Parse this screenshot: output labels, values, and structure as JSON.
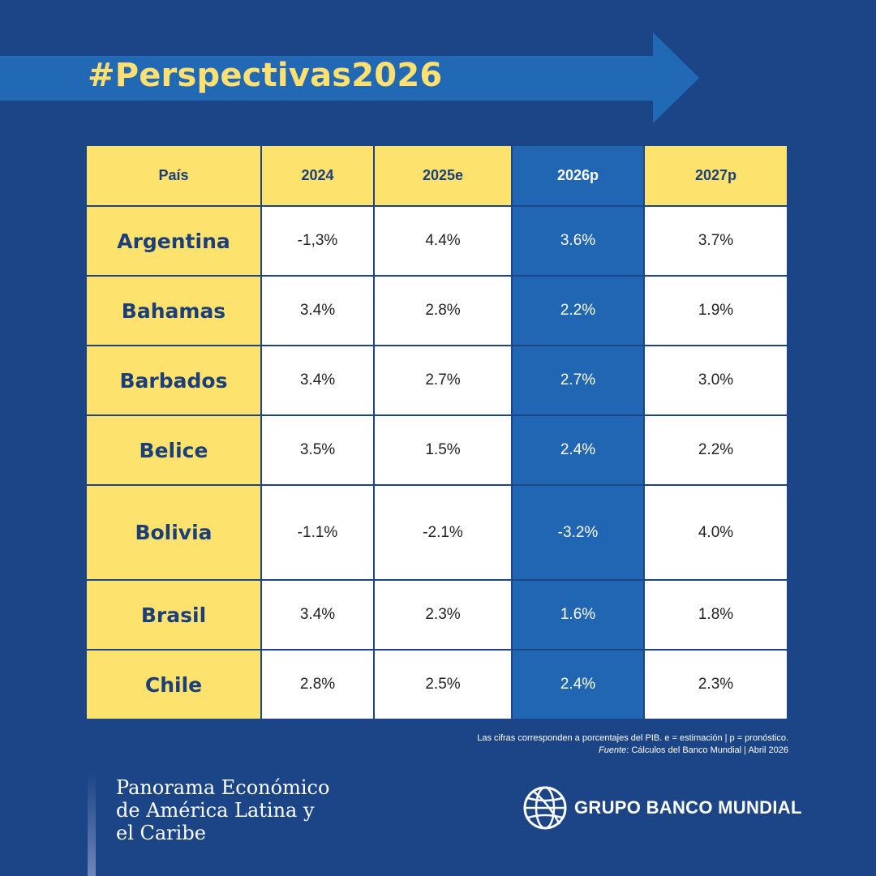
{
  "banner": {
    "title": "#Perspectivas2026"
  },
  "table": {
    "headers": [
      "País",
      "2024",
      "2025e",
      "2026p",
      "2027p"
    ],
    "highlight_column": "2026p",
    "rows": [
      {
        "country": "Argentina",
        "values": [
          "-1,3%",
          "4.4%",
          "3.6%",
          "3.7%"
        ]
      },
      {
        "country": "Bahamas",
        "values": [
          "3.4%",
          "2.8%",
          "2.2%",
          "1.9%"
        ]
      },
      {
        "country": "Barbados",
        "values": [
          "3.4%",
          "2.7%",
          "2.7%",
          "3.0%"
        ]
      },
      {
        "country": "Belice",
        "values": [
          "3.5%",
          "1.5%",
          "2.4%",
          "2.2%"
        ]
      },
      {
        "country": "Bolivia",
        "values": [
          "-1.1%",
          "-2.1%",
          "-3.2%",
          "4.0%"
        ]
      },
      {
        "country": "Brasil",
        "values": [
          "3.4%",
          "2.3%",
          "1.6%",
          "1.8%"
        ]
      },
      {
        "country": "Chile",
        "values": [
          "2.8%",
          "2.5%",
          "2.4%",
          "2.3%"
        ]
      }
    ]
  },
  "footnote": {
    "line1": "Las cifras corresponden a porcentajes del PIB.  e = estimación | p = pronóstico.",
    "source_label": "Fuente",
    "source_text": ": Cálculos del Banco Mundial | Abril 2026"
  },
  "branding": {
    "report_line1": "Panorama Económico",
    "report_line2": "de América Latina y",
    "report_line3": "el Caribe",
    "org_name": "GRUPO BANCO MUNDIAL",
    "logo_icon": "world-bank-globe-icon"
  },
  "colors": {
    "background": "#1c4587",
    "accent_yellow": "#fde26e",
    "highlight_blue": "#2166b3",
    "title_yellow": "#ffe070"
  }
}
